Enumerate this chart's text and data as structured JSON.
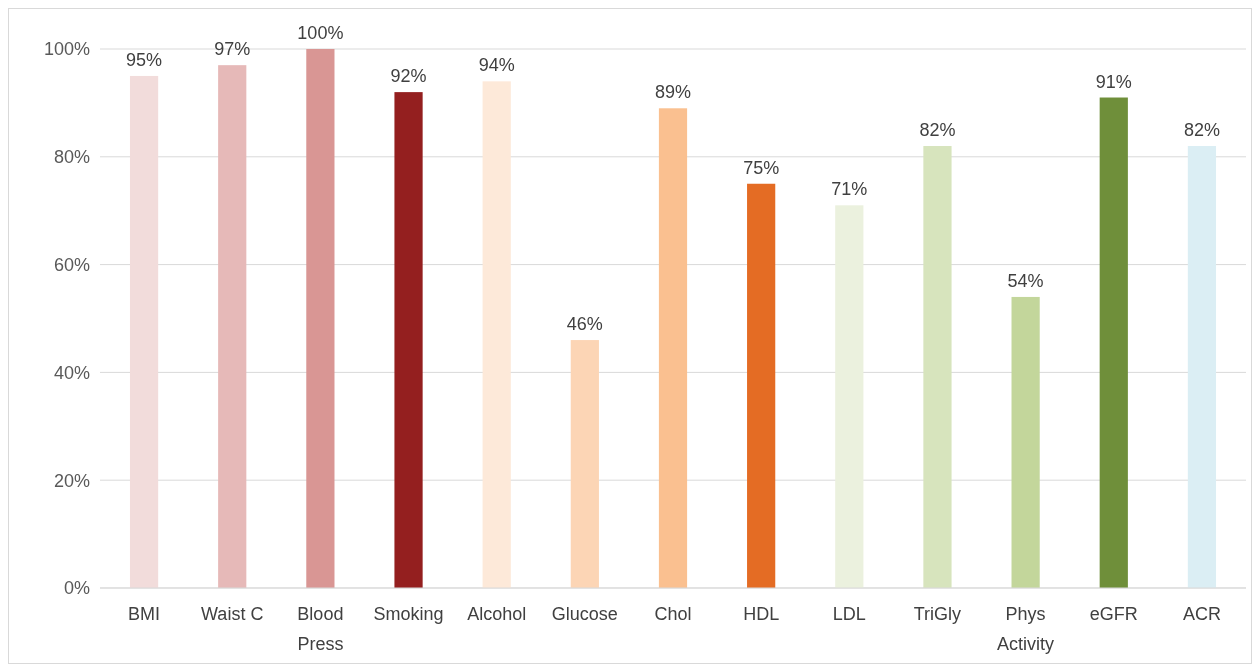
{
  "chart_data": {
    "type": "bar",
    "categories": [
      "BMI",
      "Waist C",
      "Blood Press",
      "Smoking",
      "Alcohol",
      "Glucose",
      "Chol",
      "HDL",
      "LDL",
      "TriGly",
      "Phys Activity",
      "eGFR",
      "ACR"
    ],
    "values": [
      95,
      97,
      100,
      92,
      94,
      46,
      89,
      75,
      71,
      82,
      54,
      91,
      82
    ],
    "colors": [
      "#f2dcdb",
      "#e6b9b8",
      "#d99694",
      "#941f1f",
      "#fde9d9",
      "#fcd5b5",
      "#fac090",
      "#e46c24",
      "#ebf1de",
      "#d7e4bd",
      "#c3d69b",
      "#6f8f3a",
      "#dbeef4"
    ],
    "value_labels": [
      "95%",
      "97%",
      "100%",
      "92%",
      "94%",
      "46%",
      "89%",
      "75%",
      "71%",
      "82%",
      "54%",
      "91%",
      "82%"
    ],
    "ylim": [
      0,
      100
    ],
    "yticks": [
      {
        "value": 0,
        "label": "0%"
      },
      {
        "value": 20,
        "label": "20%"
      },
      {
        "value": 40,
        "label": "40%"
      },
      {
        "value": 60,
        "label": "60%"
      },
      {
        "value": 80,
        "label": "80%"
      },
      {
        "value": 100,
        "label": "100%"
      }
    ],
    "grid": "y"
  }
}
